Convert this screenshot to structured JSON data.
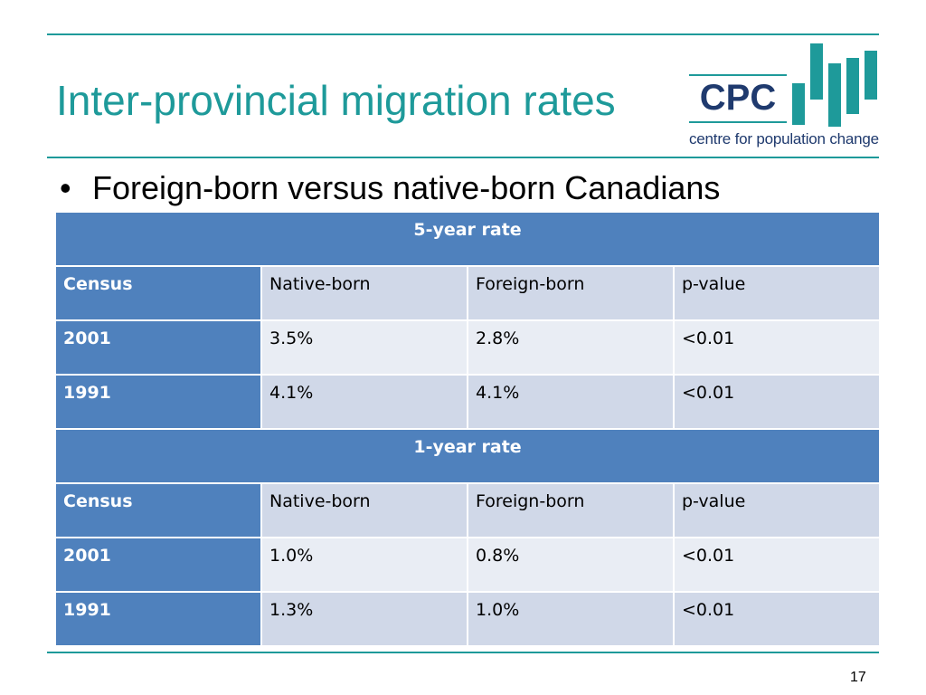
{
  "slide": {
    "title": "Inter-provincial migration rates",
    "bullet": "Foreign-born versus native-born Canadians",
    "page_number": "17"
  },
  "logo": {
    "acronym": "CPC",
    "tagline": "centre for population change",
    "colors": {
      "text": "#1f3a6e",
      "accent": "#1e9a9a"
    }
  },
  "table": {
    "sections": [
      {
        "heading": "5-year rate",
        "header": [
          "Census",
          "Native-born",
          "Foreign-born",
          "p-value"
        ],
        "rows": [
          [
            "2001",
            "3.5%",
            "2.8%",
            "<0.01"
          ],
          [
            "1991",
            "4.1%",
            "4.1%",
            "<0.01"
          ]
        ]
      },
      {
        "heading": "1-year rate",
        "header": [
          "Census",
          "Native-born",
          "Foreign-born",
          "p-value"
        ],
        "rows": [
          [
            "2001",
            "1.0%",
            "0.8%",
            "<0.01"
          ],
          [
            "1991",
            "1.3%",
            "1.0%",
            "<0.01"
          ]
        ]
      }
    ],
    "colors": {
      "header": "#4f81bd",
      "row_dark": "#d0d8e8",
      "row_light": "#e9edf4"
    }
  },
  "theme": {
    "accent": "#1e9a9a"
  }
}
